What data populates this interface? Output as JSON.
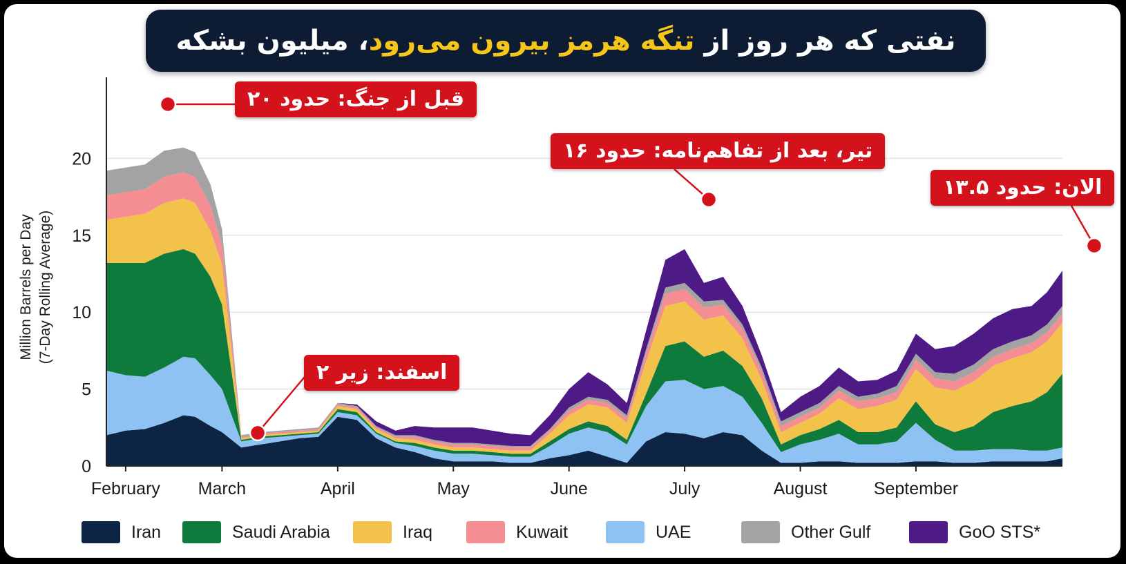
{
  "title": {
    "part1": "نفتی که هر روز از ",
    "highlight": "تنگه هرمز بیرون می‌رود",
    "part2": "، میلیون بشکه"
  },
  "callouts": [
    {
      "text": "قبل از جنگ: حدود ۲۰"
    },
    {
      "text": "اسفند: زیر ۲"
    },
    {
      "text": "تیر، بعد از تفاهم‌نامه: حدود ۱۶"
    },
    {
      "text": "الان: حدود ۱۳.۵"
    }
  ],
  "colors": {
    "accent_red": "#d3121b",
    "title_bg": "#0d1b33",
    "title_highlight": "#f5c518"
  },
  "chart_data": {
    "type": "area",
    "stacked": true,
    "ylabel": "Million Barrels per Day",
    "ylabel2": "(7-Day Rolling Average)",
    "ylim": [
      0,
      25
    ],
    "yticks": [
      0,
      5,
      10,
      15,
      20
    ],
    "grid": "horizontal",
    "legend_position": "bottom",
    "xlabels": [
      "February",
      "March",
      "April",
      "May",
      "June",
      "July",
      "August",
      "September"
    ],
    "xlabel_positions": [
      0.5,
      3,
      6,
      9,
      12,
      15,
      18,
      21
    ],
    "x": [
      0,
      0.5,
      1,
      1.5,
      2,
      2.3,
      2.7,
      3,
      3.5,
      4,
      4.5,
      5,
      5.5,
      6,
      6.5,
      7,
      7.5,
      8,
      8.5,
      9,
      9.5,
      10,
      10.5,
      11,
      11.5,
      12,
      12.5,
      13,
      13.5,
      14,
      14.5,
      15,
      15.5,
      16,
      16.5,
      17,
      17.5,
      18,
      18.5,
      19,
      19.5,
      20,
      20.5,
      21,
      21.5,
      22,
      22.5,
      23,
      23.5,
      24,
      24.4,
      24.8
    ],
    "series": [
      {
        "name": "Iran",
        "color": "#0e2445",
        "values": [
          2.0,
          2.3,
          2.4,
          2.8,
          3.3,
          3.2,
          2.6,
          2.2,
          1.2,
          1.4,
          1.6,
          1.8,
          1.9,
          3.2,
          3.0,
          1.8,
          1.2,
          0.9,
          0.5,
          0.3,
          0.3,
          0.3,
          0.2,
          0.2,
          0.5,
          0.7,
          1.0,
          0.6,
          0.2,
          1.6,
          2.2,
          2.1,
          1.8,
          2.2,
          2.0,
          1.0,
          0.2,
          0.2,
          0.3,
          0.3,
          0.2,
          0.2,
          0.2,
          0.3,
          0.3,
          0.2,
          0.2,
          0.3,
          0.3,
          0.3,
          0.3,
          0.5
        ]
      },
      {
        "name": "UAE",
        "color": "#8ec2f2",
        "values": [
          4.2,
          3.6,
          3.4,
          3.6,
          3.8,
          3.8,
          3.3,
          2.8,
          0.4,
          0.4,
          0.3,
          0.2,
          0.2,
          0.3,
          0.3,
          0.3,
          0.3,
          0.4,
          0.5,
          0.5,
          0.5,
          0.4,
          0.4,
          0.4,
          0.8,
          1.4,
          1.5,
          1.6,
          1.2,
          2.3,
          3.3,
          3.5,
          3.2,
          3.0,
          2.5,
          1.8,
          0.7,
          1.2,
          1.4,
          1.8,
          1.2,
          1.2,
          1.4,
          2.5,
          1.4,
          0.8,
          0.8,
          0.8,
          0.8,
          0.7,
          0.7,
          0.7
        ]
      },
      {
        "name": "Saudi Arabia",
        "color": "#0e7a3c",
        "values": [
          7.0,
          7.3,
          7.4,
          7.4,
          7.0,
          6.8,
          6.4,
          5.5,
          0.1,
          0.1,
          0.1,
          0.1,
          0.1,
          0.2,
          0.2,
          0.1,
          0.1,
          0.2,
          0.2,
          0.2,
          0.2,
          0.2,
          0.2,
          0.2,
          0.3,
          0.3,
          0.4,
          0.4,
          0.3,
          0.8,
          2.3,
          2.5,
          2.1,
          2.3,
          2.0,
          1.6,
          0.5,
          0.6,
          0.7,
          0.9,
          0.8,
          0.8,
          0.9,
          1.4,
          1.0,
          1.2,
          1.6,
          2.4,
          2.8,
          3.2,
          3.8,
          4.8
        ]
      },
      {
        "name": "Iraq",
        "color": "#f2c24b",
        "values": [
          2.8,
          3.0,
          3.2,
          3.3,
          3.3,
          3.3,
          3.0,
          2.6,
          0.1,
          0.1,
          0.1,
          0.1,
          0.1,
          0.2,
          0.2,
          0.2,
          0.2,
          0.2,
          0.2,
          0.2,
          0.2,
          0.2,
          0.2,
          0.2,
          0.5,
          0.9,
          1.1,
          1.2,
          1.1,
          2.1,
          2.6,
          2.6,
          2.4,
          2.3,
          1.8,
          1.2,
          0.8,
          0.8,
          1.0,
          1.4,
          1.5,
          1.7,
          1.8,
          2.1,
          2.4,
          2.7,
          2.9,
          3.0,
          3.1,
          3.2,
          3.3,
          3.3
        ]
      },
      {
        "name": "Kuwait",
        "color": "#f48e92",
        "values": [
          1.6,
          1.6,
          1.6,
          1.7,
          1.7,
          1.7,
          1.6,
          1.3,
          0.1,
          0.1,
          0.1,
          0.1,
          0.1,
          0.1,
          0.1,
          0.1,
          0.1,
          0.2,
          0.2,
          0.2,
          0.2,
          0.2,
          0.2,
          0.2,
          0.2,
          0.3,
          0.3,
          0.3,
          0.3,
          0.5,
          0.8,
          0.8,
          0.8,
          0.7,
          0.6,
          0.5,
          0.4,
          0.4,
          0.4,
          0.5,
          0.5,
          0.5,
          0.5,
          0.6,
          0.6,
          0.6,
          0.6,
          0.6,
          0.6,
          0.6,
          0.6,
          0.6
        ]
      },
      {
        "name": "Other Gulf",
        "color": "#a3a3a3",
        "values": [
          1.6,
          1.6,
          1.6,
          1.7,
          1.6,
          1.6,
          1.4,
          1.0,
          0.1,
          0.1,
          0.1,
          0.1,
          0.1,
          0.1,
          0.1,
          0.1,
          0.1,
          0.1,
          0.1,
          0.1,
          0.1,
          0.1,
          0.1,
          0.1,
          0.1,
          0.2,
          0.2,
          0.2,
          0.2,
          0.3,
          0.4,
          0.4,
          0.4,
          0.3,
          0.3,
          0.3,
          0.3,
          0.3,
          0.3,
          0.3,
          0.3,
          0.3,
          0.4,
          0.4,
          0.4,
          0.5,
          0.5,
          0.5,
          0.5,
          0.5,
          0.5,
          0.5
        ]
      },
      {
        "name": "GoO STS*",
        "color": "#4e1a86",
        "values": [
          0,
          0,
          0,
          0,
          0,
          0,
          0,
          0,
          0,
          0,
          0,
          0,
          0,
          0,
          0.1,
          0.3,
          0.3,
          0.6,
          0.8,
          1.0,
          1.0,
          0.9,
          0.8,
          0.7,
          0.9,
          1.2,
          1.6,
          1.0,
          0.8,
          1.2,
          1.8,
          2.2,
          1.2,
          1.5,
          1.2,
          0.8,
          0.6,
          1.0,
          1.1,
          1.2,
          1.0,
          0.9,
          1.0,
          1.3,
          1.5,
          1.8,
          2.0,
          2.0,
          2.1,
          1.9,
          2.1,
          2.3
        ]
      }
    ]
  }
}
